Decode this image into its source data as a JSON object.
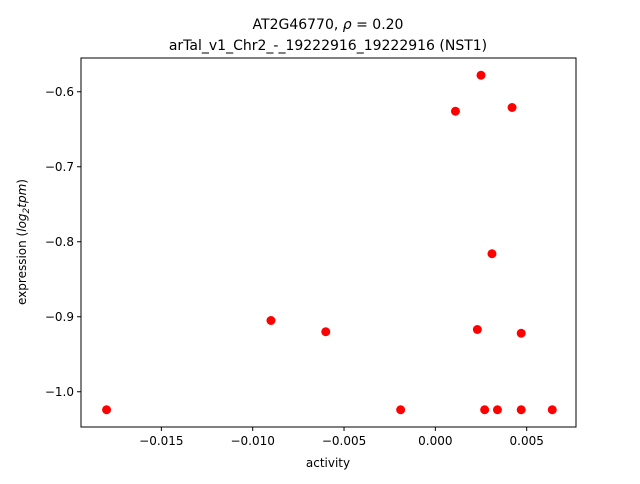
{
  "chart_data": {
    "type": "scatter",
    "title_line1_prefix": "AT2G46770, ",
    "title_line1_rho_symbol": "ρ",
    "title_line1_rho_rest": " = 0.20",
    "title_line2": "arTal_v1_Chr2_-_19222916_19222916 (NST1)",
    "xlabel": "activity",
    "ylabel_prefix": "expression (",
    "ylabel_log": "log",
    "ylabel_sub": "2",
    "ylabel_tpm": "tpm",
    "ylabel_suffix": ")",
    "xlim": [
      -0.0194,
      0.0077
    ],
    "ylim": [
      -1.047,
      -0.555
    ],
    "xticks": [
      -0.015,
      -0.01,
      -0.005,
      0.0,
      0.005
    ],
    "xtick_labels": [
      "−0.015",
      "−0.010",
      "−0.005",
      "0.000",
      "0.005"
    ],
    "yticks": [
      -1.0,
      -0.9,
      -0.8,
      -0.7,
      -0.6
    ],
    "ytick_labels": [
      "−1.0",
      "−0.9",
      "−0.8",
      "−0.7",
      "−0.6"
    ],
    "marker_color": "#ff0000",
    "grid": false,
    "points": [
      {
        "x": -0.018,
        "y": -1.024
      },
      {
        "x": -0.009,
        "y": -0.905
      },
      {
        "x": -0.006,
        "y": -0.92
      },
      {
        "x": -0.0019,
        "y": -1.024
      },
      {
        "x": 0.0011,
        "y": -0.626
      },
      {
        "x": 0.0023,
        "y": -0.917
      },
      {
        "x": 0.0025,
        "y": -0.578
      },
      {
        "x": 0.0027,
        "y": -1.024
      },
      {
        "x": 0.0031,
        "y": -0.816
      },
      {
        "x": 0.0034,
        "y": -1.024
      },
      {
        "x": 0.0042,
        "y": -0.621
      },
      {
        "x": 0.0047,
        "y": -0.922
      },
      {
        "x": 0.0047,
        "y": -1.024
      },
      {
        "x": 0.0064,
        "y": -1.024
      }
    ]
  }
}
